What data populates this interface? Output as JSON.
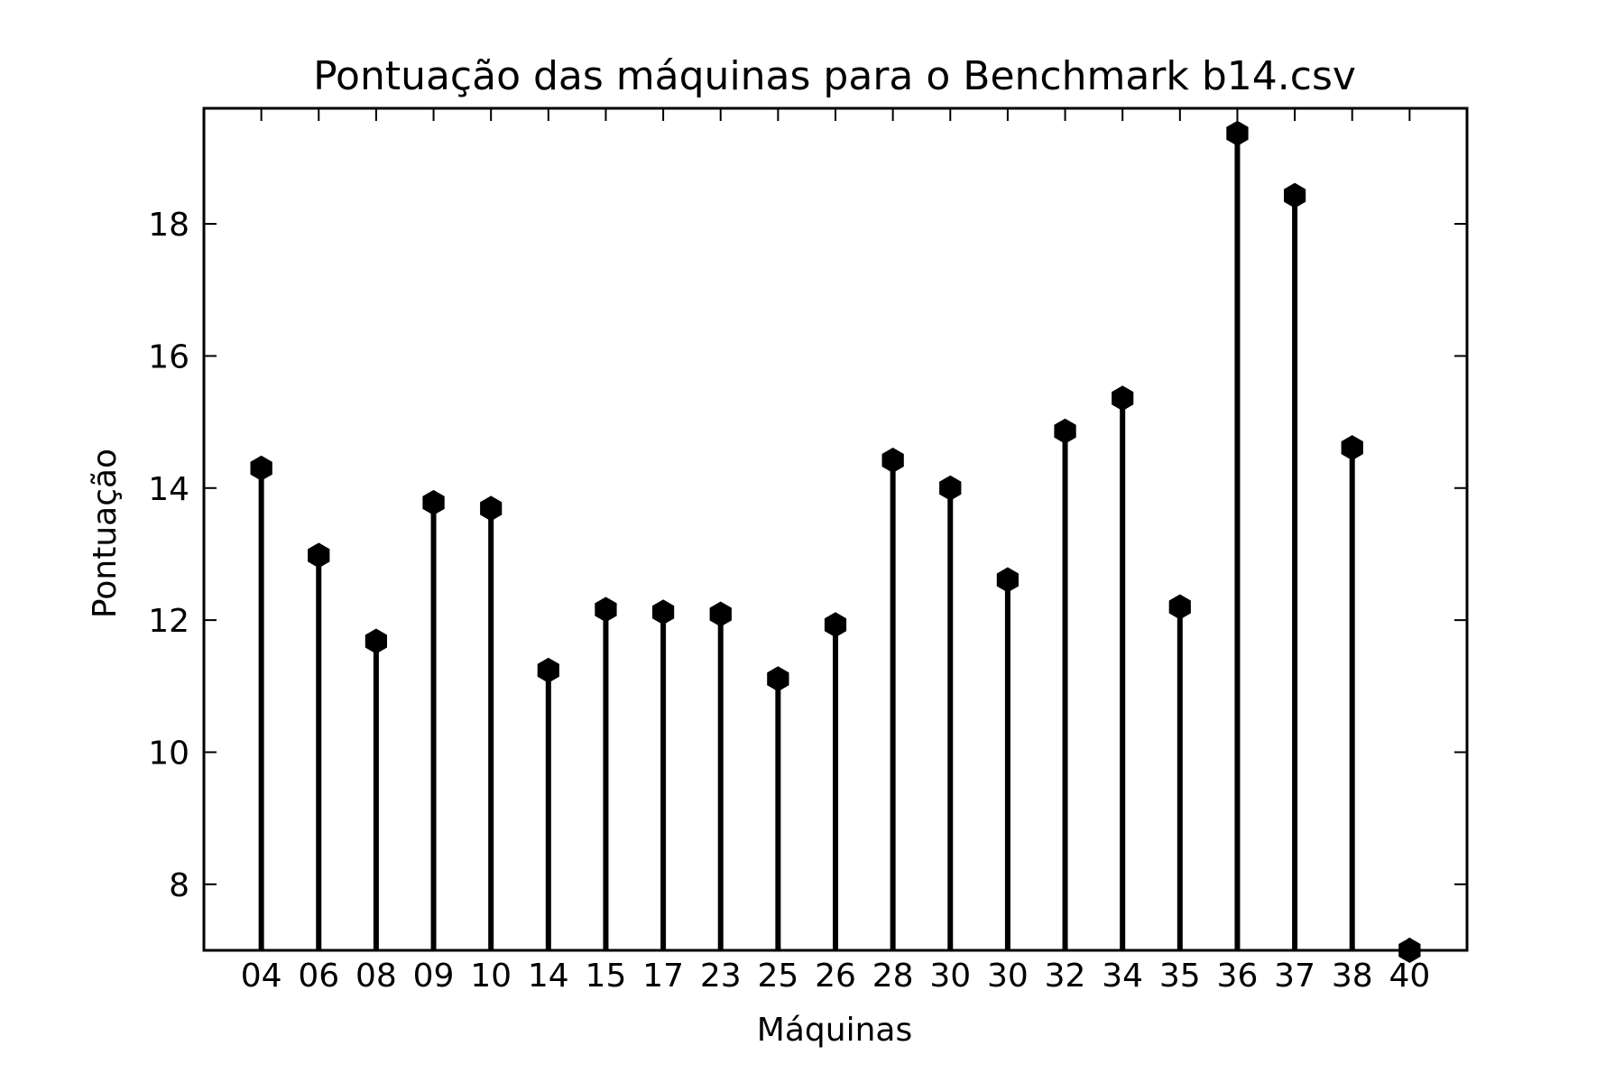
{
  "chart_data": {
    "type": "stem",
    "title": "Pontuação das máquinas para o Benchmark b14.csv",
    "xlabel": "Máquinas",
    "ylabel": "Pontuação",
    "categories": [
      "04",
      "06",
      "08",
      "09",
      "10",
      "14",
      "15",
      "17",
      "23",
      "25",
      "26",
      "28",
      "30",
      "30",
      "32",
      "34",
      "35",
      "36",
      "37",
      "38",
      "40"
    ],
    "values": [
      14.3,
      12.98,
      11.68,
      13.78,
      13.69,
      11.24,
      12.16,
      12.12,
      12.09,
      11.11,
      11.93,
      14.42,
      14.0,
      12.61,
      14.86,
      15.36,
      12.2,
      19.37,
      18.43,
      14.61,
      7.0
    ],
    "ylim": [
      7.0,
      19.75
    ],
    "yticks": [
      8,
      10,
      12,
      14,
      16,
      18
    ],
    "grid": false,
    "color": "#000000",
    "marker": "hexagon"
  }
}
